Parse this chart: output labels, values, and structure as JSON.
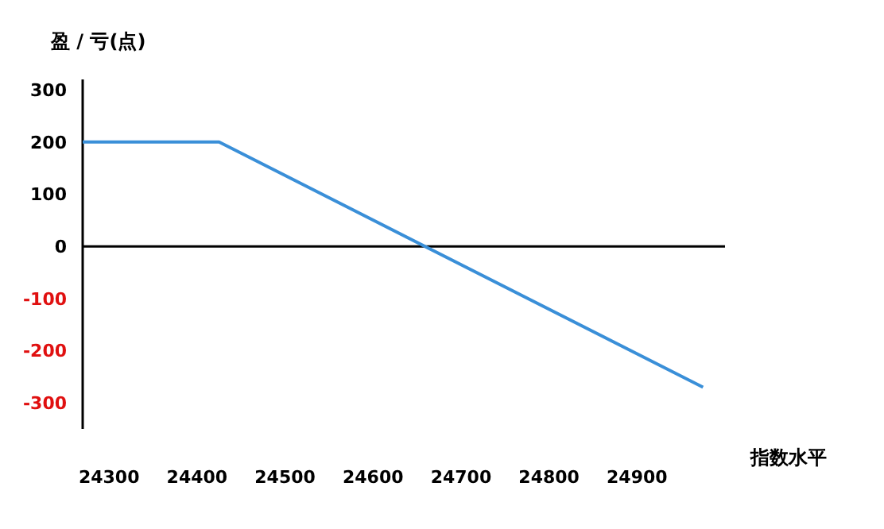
{
  "chart_data": {
    "type": "line",
    "ylabel": "盈 / 亏(点)",
    "xlabel": "指数水平",
    "xlim": [
      24270,
      25000
    ],
    "xticks": [
      24300,
      24400,
      24500,
      24600,
      24700,
      24800,
      24900
    ],
    "ylim": [
      -350,
      320
    ],
    "yticks": [
      -300,
      -200,
      -100,
      0,
      100,
      200,
      300
    ],
    "series": [
      {
        "color": "#3a8fd8",
        "x": [
          24270,
          24425,
          24975
        ],
        "values": [
          200,
          200,
          -270
        ]
      }
    ],
    "marker": "none",
    "line_style": "solid"
  }
}
